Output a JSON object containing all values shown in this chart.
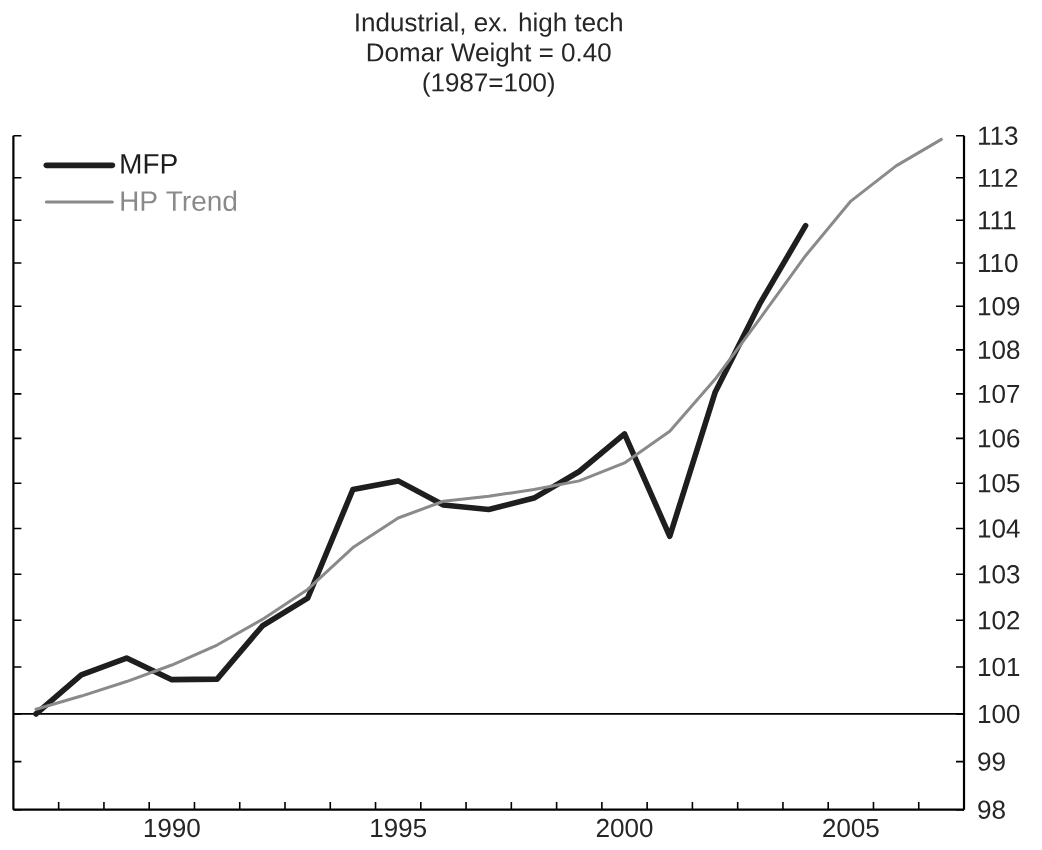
{
  "chart_data": {
    "type": "line",
    "title": "Industrial, ex. high tech",
    "subtitle": "Domar Weight = 0.40",
    "annotations": [
      "(1987=100)"
    ],
    "x": [
      1987,
      1988,
      1989,
      1990,
      1991,
      1992,
      1993,
      1994,
      1995,
      1996,
      1997,
      1998,
      1999,
      2000,
      2001,
      2002,
      2003,
      2004,
      2005,
      2006,
      2007
    ],
    "series": [
      {
        "name": "MFP",
        "color": "#1e1e1e",
        "values": [
          100.0,
          100.83,
          101.19,
          100.73,
          100.74,
          101.88,
          102.48,
          104.86,
          105.05,
          104.52,
          104.42,
          104.67,
          105.26,
          106.1,
          103.83,
          107.03,
          109.08,
          110.87,
          null,
          null,
          null
        ]
      },
      {
        "name": "HP Trend",
        "color": "#8a8a8a",
        "values": [
          100.1,
          100.38,
          100.69,
          101.04,
          101.47,
          102.02,
          102.67,
          103.58,
          104.23,
          104.6,
          104.71,
          104.86,
          105.05,
          105.45,
          106.16,
          107.33,
          108.73,
          110.17,
          111.45,
          112.28,
          112.91
        ]
      }
    ],
    "xlim": [
      1986.5,
      2007.5
    ],
    "xticks": [
      {
        "value": 1987.5,
        "label": null
      },
      {
        "value": 1988.5,
        "label": null
      },
      {
        "value": 1989.5,
        "label": null
      },
      1990,
      {
        "value": 1990.5,
        "label": null
      },
      {
        "value": 1991.5,
        "label": null
      },
      {
        "value": 1992.5,
        "label": null
      },
      {
        "value": 1993.5,
        "label": null
      },
      {
        "value": 1994.5,
        "label": null
      },
      1995,
      {
        "value": 1995.5,
        "label": null
      },
      {
        "value": 1996.5,
        "label": null
      },
      {
        "value": 1997.5,
        "label": null
      },
      {
        "value": 1998.5,
        "label": null
      },
      {
        "value": 1999.5,
        "label": null
      },
      2000,
      {
        "value": 2000.5,
        "label": null
      },
      {
        "value": 2001.5,
        "label": null
      },
      {
        "value": 2002.5,
        "label": null
      },
      {
        "value": 2003.5,
        "label": null
      },
      {
        "value": 2004.5,
        "label": null
      },
      2005,
      {
        "value": 2005.5,
        "label": null
      },
      {
        "value": 2006.5,
        "label": null
      }
    ],
    "ylim": [
      98,
      113
    ],
    "yticks": [
      98,
      99,
      100,
      101,
      102,
      103,
      104,
      105,
      106,
      107,
      108,
      109,
      110,
      111,
      112,
      113
    ],
    "log": true,
    "legend": "top left",
    "marker": "none",
    "line_style": "solid",
    "ref_lines": [
      {
        "axis": "y",
        "value": 100,
        "color": "#000000"
      }
    ]
  }
}
